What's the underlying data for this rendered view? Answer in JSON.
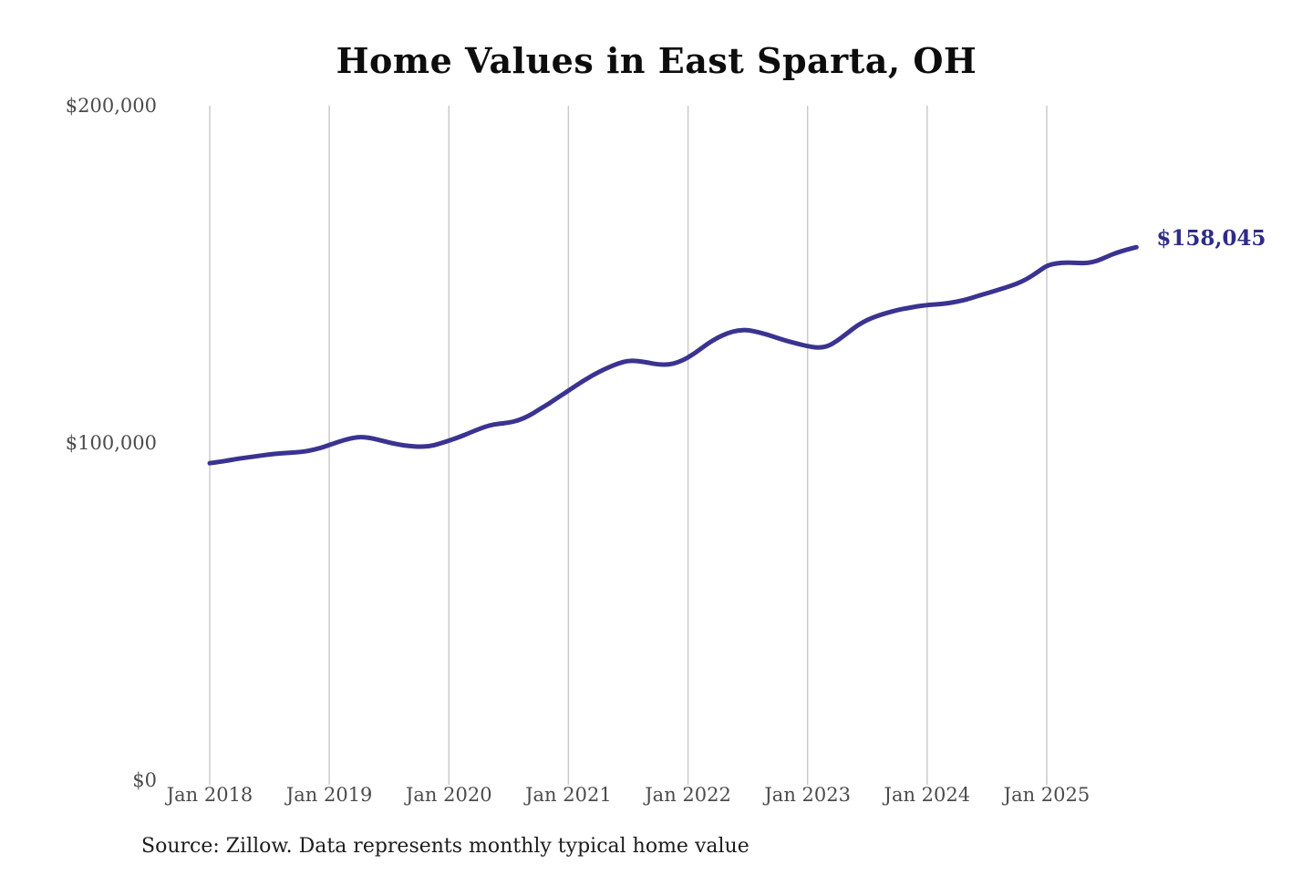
{
  "title": "Home Values in East Sparta, OH",
  "source_note": "Source: Zillow. Data represents monthly typical home value",
  "colors": {
    "background": "#ffffff",
    "line": "#3a3391",
    "final_label": "#2e2c87",
    "gridline": "#cbcbcb",
    "axis_text": "#4b4b4b",
    "title_text": "#0d0d0d",
    "source_text": "#1c1c1c"
  },
  "chart_data": {
    "type": "line",
    "title": "Home Values in East Sparta, OH",
    "x_frequency": "monthly",
    "x_start": "Jan 2018",
    "x_end": "Oct 2025",
    "x_tick_labels": [
      "Jan 2018",
      "Jan 2019",
      "Jan 2020",
      "Jan 2021",
      "Jan 2022",
      "Jan 2023",
      "Jan 2024",
      "Jan 2025"
    ],
    "y_tick_labels": [
      "$0",
      "$100,000",
      "$200,000"
    ],
    "y_ticks": [
      0,
      100000,
      200000
    ],
    "ylim": [
      0,
      200000
    ],
    "grid": "vertical",
    "legend": "none",
    "final_value": 158045,
    "final_value_label": "$158,045",
    "series": [
      {
        "name": "Typical home value",
        "values": [
          94000,
          94400,
          94900,
          95400,
          95800,
          96200,
          96600,
          96900,
          97100,
          97300,
          97700,
          98400,
          99400,
          100400,
          101300,
          101800,
          101600,
          100900,
          100100,
          99500,
          99100,
          98900,
          99000,
          99700,
          100700,
          101700,
          102900,
          104100,
          105200,
          105700,
          106000,
          106700,
          108000,
          109800,
          111600,
          113600,
          115500,
          117500,
          119300,
          121000,
          122400,
          123600,
          124400,
          124300,
          123800,
          123300,
          123200,
          123900,
          125300,
          127300,
          129500,
          131300,
          132600,
          133400,
          133500,
          132900,
          132100,
          131100,
          130200,
          129400,
          128700,
          128200,
          128600,
          130300,
          132600,
          134900,
          136500,
          137700,
          138600,
          139400,
          140000,
          140500,
          140900,
          141100,
          141400,
          141900,
          142600,
          143500,
          144400,
          145300,
          146200,
          147200,
          148600,
          150500,
          152600,
          153300,
          153500,
          153400,
          153300,
          153900,
          155200,
          156400,
          157300,
          158045
        ]
      }
    ]
  }
}
